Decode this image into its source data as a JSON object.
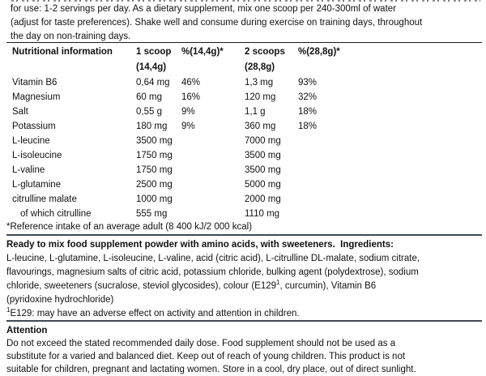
{
  "directions": {
    "lines": [
      "for use: 1-2 servings per day. As a dietary supplement, mix one scoop per 240-300ml of water",
      "(adjust for taste preferences). Shake well and consume during exercise on training days, throughout",
      "the day on non-training days."
    ]
  },
  "nutrition_table": {
    "header": {
      "col_info": "Nutritional information",
      "col_scoop1_line1": "1 scoop",
      "col_scoop1_line2": "(14,4g)",
      "col_pct1": "%(14,4g)*",
      "col_scoop2_line1": "2 scoops",
      "col_scoop2_line2": "(28,8g)",
      "col_pct2": "%(28,8g)*"
    },
    "rows": [
      {
        "name": "Vitamin B6",
        "amount_1_scoop": "0,64 mg",
        "percent_1_scoop": "46%",
        "amount_2_scoops": "1,3 mg",
        "percent_2_scoops": "93%"
      },
      {
        "name": "Magnesium",
        "amount_1_scoop": "60 mg",
        "percent_1_scoop": "16%",
        "amount_2_scoops": "120 mg",
        "percent_2_scoops": "32%"
      },
      {
        "name": "Salt",
        "amount_1_scoop": "0,55 g",
        "percent_1_scoop": "9%",
        "amount_2_scoops": "1,1 g",
        "percent_2_scoops": "18%"
      },
      {
        "name": "Potassium",
        "amount_1_scoop": "180 mg",
        "percent_1_scoop": "9%",
        "amount_2_scoops": "360 mg",
        "percent_2_scoops": "18%"
      },
      {
        "name": "L-leucine",
        "amount_1_scoop": "3500 mg",
        "percent_1_scoop": "",
        "amount_2_scoops": "7000 mg",
        "percent_2_scoops": ""
      },
      {
        "name": "L-isoleucine",
        "amount_1_scoop": "1750 mg",
        "percent_1_scoop": "",
        "amount_2_scoops": "3500 mg",
        "percent_2_scoops": ""
      },
      {
        "name": "L-valine",
        "amount_1_scoop": "1750 mg",
        "percent_1_scoop": "",
        "amount_2_scoops": "3500 mg",
        "percent_2_scoops": ""
      },
      {
        "name": "L-glutamine",
        "amount_1_scoop": "2500 mg",
        "percent_1_scoop": "",
        "amount_2_scoops": "5000 mg",
        "percent_2_scoops": ""
      },
      {
        "name": "citrulline malate",
        "amount_1_scoop": "1000 mg",
        "percent_1_scoop": "",
        "amount_2_scoops": "2000 mg",
        "percent_2_scoops": ""
      },
      {
        "name": "of which citrulline",
        "amount_1_scoop": "555 mg",
        "percent_1_scoop": "",
        "amount_2_scoops": "1110 mg",
        "percent_2_scoops": ""
      }
    ],
    "footnote": "*Reference intake of an average adult (8 400 kJ/2 000 kcal)"
  },
  "ingredients": {
    "heading": "Ready to mix food supplement powder with amino acids, with sweeteners.  Ingredients:",
    "line_1": "L-leucine, L-glutamine, L-isoleucine, L-valine, acid (citric acid), L-citrulline DL-malate, sodium citrate,",
    "line_2": "flavourings, magnesium salts of citric acid, potassium chloride, bulking agent (polydextrose), sodium",
    "line_3_before_sup": "chloride, sweeteners (sucralose, steviol glycosides), colour (E129",
    "line_3_sup": "1",
    "line_3_after_sup": ", curcumin), Vitamin B6",
    "line_4": "(pyridoxine hydrochloride)",
    "e129_note_sup": "1",
    "e129_note_text": "E129: may have an adverse effect on activity and attention in children."
  },
  "attention": {
    "heading": "Attention",
    "lines": [
      "Do not exceed the stated recommended daily dose. Food supplement should not be used as a",
      "substitute for a varied and balanced diet. Keep out of reach of young children. This product is not",
      "suitable for children, pregnant and lactating women. Store in a cool, dry place, out of direct sunlight."
    ]
  }
}
